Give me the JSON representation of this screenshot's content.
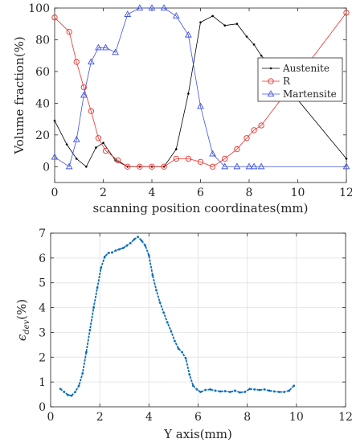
{
  "chart_data": [
    {
      "type": "line",
      "title": "",
      "xlabel": "scanning position coordinates(mm)",
      "ylabel": "Volume fraction(%)",
      "xlim": [
        0,
        12
      ],
      "ylim": [
        -10,
        100
      ],
      "xticks": [
        0,
        2,
        4,
        6,
        8,
        10,
        12
      ],
      "yticks": [
        0,
        20,
        40,
        60,
        80,
        100
      ],
      "grid": false,
      "legend": "right",
      "series": [
        {
          "name": "Austenite",
          "color": "#000000",
          "marker": "point",
          "x": [
            0,
            0.5,
            0.9,
            1.3,
            1.7,
            2.0,
            2.5,
            3.0,
            3.5,
            4.0,
            4.5,
            5.0,
            5.5,
            6.0,
            6.5,
            7.0,
            7.5,
            7.9,
            8.2,
            8.5,
            12
          ],
          "y": [
            29,
            14,
            5,
            0,
            12,
            15,
            4,
            0,
            0,
            0,
            0,
            11,
            46,
            91,
            95,
            89,
            90,
            82,
            77,
            70,
            5
          ]
        },
        {
          "name": "R",
          "color": "#e8302a",
          "marker": "circle",
          "x": [
            0,
            0.6,
            0.9,
            1.2,
            1.5,
            1.8,
            2.1,
            2.6,
            3.0,
            3.5,
            4.0,
            4.5,
            5.0,
            5.5,
            6.0,
            6.5,
            7.0,
            7.5,
            7.9,
            8.2,
            8.5,
            12
          ],
          "y": [
            94,
            85,
            66,
            50,
            35,
            18,
            10,
            4,
            0,
            0,
            0,
            0,
            5,
            5,
            3,
            0,
            5,
            11,
            18,
            23,
            26,
            97
          ]
        },
        {
          "name": "Martensite",
          "color": "#3f51e0",
          "marker": "triangle",
          "x": [
            0,
            0.6,
            0.9,
            1.2,
            1.5,
            1.8,
            2.1,
            2.5,
            3.0,
            3.5,
            4.0,
            4.5,
            5.0,
            5.5,
            6.0,
            6.5,
            7.0,
            7.5,
            8.0,
            8.2,
            8.5,
            12
          ],
          "y": [
            6,
            0,
            17,
            45,
            66,
            75,
            75,
            72,
            96,
            100,
            100,
            100,
            95,
            83,
            38,
            8,
            0,
            0,
            0,
            0,
            0,
            0
          ]
        }
      ]
    },
    {
      "type": "scatter",
      "title": "",
      "xlabel": "Y axis(mm)",
      "ylabel": "ϵdev(%)",
      "ylabel_main": "ϵ",
      "ylabel_sub": "dev",
      "ylabel_unit": "(%)",
      "xlim": [
        0,
        12
      ],
      "ylim": [
        0,
        7
      ],
      "xticks": [
        0,
        2,
        4,
        6,
        8,
        10,
        12
      ],
      "yticks": [
        0,
        1,
        2,
        3,
        4,
        5,
        6,
        7
      ],
      "grid": true,
      "color": "#0d6fb8",
      "series": [
        {
          "x": [
            0.4,
            0.55,
            0.7,
            0.85,
            1.0,
            1.15,
            1.3,
            1.45,
            1.6,
            1.75,
            1.9,
            2.05,
            2.2,
            2.35,
            2.5,
            2.65,
            2.8,
            2.95,
            3.1,
            3.25,
            3.4,
            3.55,
            3.7,
            3.85,
            4.0,
            4.15,
            4.3,
            4.45,
            4.6,
            4.75,
            4.9,
            5.05,
            5.2,
            5.35,
            5.5,
            5.65,
            5.8,
            5.95,
            6.1,
            6.3,
            6.5,
            6.7,
            6.9,
            7.1,
            7.3,
            7.5,
            7.7,
            7.9,
            8.1,
            8.3,
            8.5,
            8.7,
            8.9,
            9.1,
            9.3,
            9.5,
            9.7,
            9.9
          ],
          "y": [
            0.72,
            0.6,
            0.48,
            0.45,
            0.6,
            0.85,
            1.35,
            2.2,
            3.1,
            4.0,
            4.8,
            5.6,
            6.05,
            6.2,
            6.22,
            6.3,
            6.35,
            6.4,
            6.5,
            6.6,
            6.75,
            6.85,
            6.7,
            6.5,
            6.1,
            5.3,
            4.7,
            4.2,
            3.8,
            3.4,
            3.05,
            2.65,
            2.35,
            2.2,
            1.95,
            1.3,
            0.85,
            0.7,
            0.6,
            0.68,
            0.7,
            0.65,
            0.62,
            0.63,
            0.6,
            0.65,
            0.58,
            0.6,
            0.72,
            0.7,
            0.68,
            0.7,
            0.65,
            0.62,
            0.6,
            0.6,
            0.65,
            0.85
          ]
        }
      ]
    }
  ]
}
